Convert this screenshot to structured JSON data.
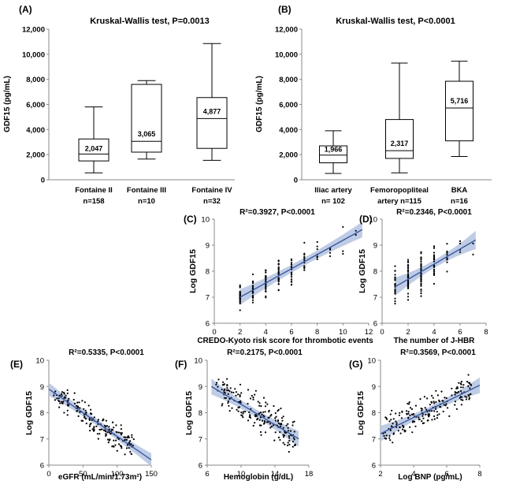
{
  "chart_data": [
    {
      "id": "A",
      "type": "box",
      "panel_label": "(A)",
      "title": "Kruskal-Wallis  test, P=0.0013",
      "ylabel": "GDF15 (pg/mL)",
      "ylim": [
        0,
        12000
      ],
      "yticks": [
        0,
        2000,
        4000,
        6000,
        8000,
        10000,
        12000
      ],
      "ytick_labels": [
        "0",
        "2,000",
        "4,000",
        "6,000",
        "8,000",
        "10,000",
        "12,000"
      ],
      "groups": [
        {
          "name": "Fontaine II",
          "n_label": "n=158",
          "min": 550,
          "q1": 1500,
          "median": 2047,
          "q3": 3250,
          "max": 5800,
          "median_label": "2,047"
        },
        {
          "name": "Fontaine III",
          "n_label": "n=10",
          "min": 1650,
          "q1": 2200,
          "median": 3065,
          "q3": 7600,
          "max": 7900,
          "median_label": "3,065"
        },
        {
          "name": "Fontaine IV",
          "n_label": "n=32",
          "min": 1550,
          "q1": 2500,
          "median": 4877,
          "q3": 6550,
          "max": 10850,
          "median_label": "4,877"
        }
      ]
    },
    {
      "id": "B",
      "type": "box",
      "panel_label": "(B)",
      "title": "Kruskal-Wallis  test, P<0.0001",
      "ylabel": "GDF15 (pg/mL)",
      "ylim": [
        0,
        12000
      ],
      "yticks": [
        0,
        2000,
        4000,
        6000,
        8000,
        10000,
        12000
      ],
      "ytick_labels": [
        "0",
        "2,000",
        "4,000",
        "6,000",
        "8,000",
        "10,000",
        "12,000"
      ],
      "groups": [
        {
          "name": "Iliac artery",
          "n_label": "n= 102",
          "min": 500,
          "q1": 1350,
          "median": 1966,
          "q3": 2700,
          "max": 3900,
          "median_label": "1,966"
        },
        {
          "name": "Femoropopliteal",
          "name2": "artery n=115",
          "n_label": "",
          "min": 550,
          "q1": 1700,
          "median": 2317,
          "q3": 4800,
          "max": 9300,
          "median_label": "2,317"
        },
        {
          "name": "BKA",
          "n_label": "n=16",
          "min": 1850,
          "q1": 3100,
          "median": 5716,
          "q3": 7850,
          "max": 9450,
          "median_label": "5,716"
        }
      ]
    },
    {
      "id": "C",
      "type": "scatter",
      "panel_label": "(C)",
      "title": "R²=0.3927, P<0.0001",
      "xlabel": "CREDO-Kyoto risk score for thrombotic events",
      "ylabel": "Log GDF15",
      "xlim": [
        0,
        12
      ],
      "ylim": [
        6,
        10
      ],
      "xticks": [
        0,
        2,
        4,
        6,
        8,
        10,
        12
      ],
      "yticks": [
        6,
        7,
        8,
        9,
        10
      ],
      "fit": {
        "x": [
          2,
          11.5
        ],
        "y": [
          7.0,
          9.6
        ]
      },
      "band": [
        0.15,
        0.3
      ],
      "x_discrete": [
        2,
        3,
        4,
        5,
        6,
        7,
        8,
        9,
        10,
        11
      ],
      "counts": [
        32,
        30,
        30,
        28,
        20,
        14,
        8,
        5,
        3,
        2
      ],
      "noise": 0.45
    },
    {
      "id": "D",
      "type": "scatter",
      "panel_label": "(D)",
      "title": "R²=0.2346, P<0.0001",
      "xlabel": "The number of J-HBR",
      "ylabel": "Log GDF15",
      "xlim": [
        0,
        8
      ],
      "ylim": [
        6,
        10
      ],
      "xticks": [
        0,
        2,
        4,
        6,
        8
      ],
      "yticks": [
        6,
        7,
        8,
        9,
        10
      ],
      "fit": {
        "x": [
          1,
          7.2
        ],
        "y": [
          7.4,
          9.2
        ]
      },
      "band": [
        0.15,
        0.35
      ],
      "x_discrete": [
        1,
        2,
        3,
        4,
        5,
        6,
        7
      ],
      "counts": [
        30,
        45,
        45,
        30,
        12,
        4,
        2
      ],
      "noise": 0.55
    },
    {
      "id": "E",
      "type": "scatter",
      "panel_label": "(E)",
      "title": "R²=0.5335, P<0.0001",
      "xlabel": "eGFR (mL/min/1.73m²)",
      "ylabel": "Log GDF15",
      "xlim": [
        0,
        150
      ],
      "ylim": [
        6,
        10
      ],
      "xticks": [
        0,
        50,
        100,
        150
      ],
      "yticks": [
        6,
        7,
        8,
        9,
        10
      ],
      "fit": {
        "x": [
          0,
          150
        ],
        "y": [
          8.9,
          6.2
        ]
      },
      "band": [
        0.12,
        0.25
      ],
      "x_range": [
        2,
        125
      ],
      "count": 190,
      "noise": 0.38
    },
    {
      "id": "F",
      "type": "scatter",
      "panel_label": "(F)",
      "title": "R²=0.2175, P<0.0001",
      "xlabel": "Hemoglobin (g/dL)",
      "ylabel": "Log GDF15",
      "xlim": [
        6,
        18
      ],
      "ylim": [
        6,
        10
      ],
      "xticks": [
        6,
        10,
        14,
        18
      ],
      "yticks": [
        6,
        7,
        8,
        9,
        10
      ],
      "fit": {
        "x": [
          6.5,
          16.8
        ],
        "y": [
          9.0,
          7.0
        ]
      },
      "band": [
        0.15,
        0.3
      ],
      "x_range": [
        7,
        16.5
      ],
      "count": 190,
      "noise": 0.55
    },
    {
      "id": "G",
      "type": "scatter",
      "panel_label": "(G)",
      "title": "R²=0.3569, P<0.0001",
      "xlabel": "Log BNP (pg/mL)",
      "ylabel": "Log GDF15",
      "xlim": [
        2,
        8
      ],
      "ylim": [
        6,
        10
      ],
      "xticks": [
        2,
        4,
        6,
        8
      ],
      "yticks": [
        6,
        7,
        8,
        9,
        10
      ],
      "fit": {
        "x": [
          2,
          8
        ],
        "y": [
          7.2,
          9.05
        ]
      },
      "band": [
        0.12,
        0.3
      ],
      "x_range": [
        2.1,
        7.6
      ],
      "count": 190,
      "noise": 0.5
    }
  ]
}
